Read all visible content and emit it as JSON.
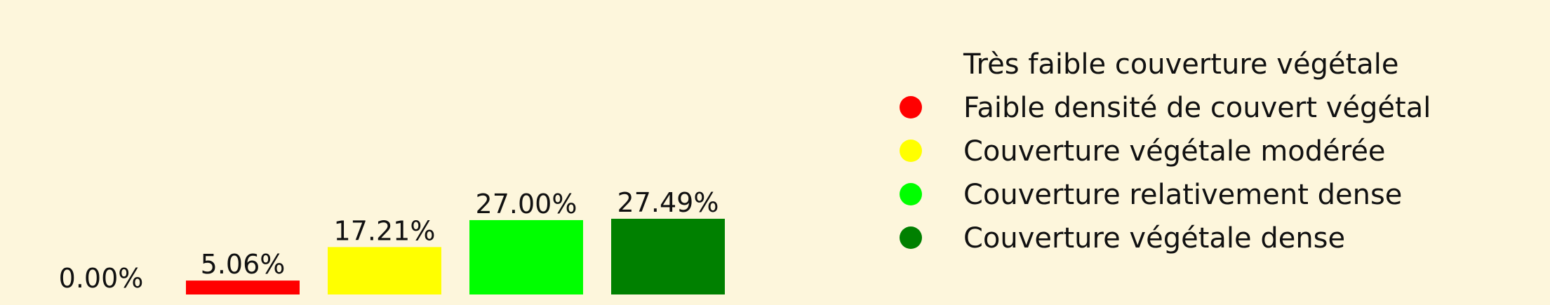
{
  "chart_data": {
    "type": "bar",
    "categories": [
      "Très faible couverture végétale",
      "Faible densité de couvert végétal",
      "Couverture végétale modérée",
      "Couverture relativement dense",
      "Couverture végétale dense"
    ],
    "values": [
      0.0,
      5.06,
      17.21,
      27.0,
      27.49
    ],
    "value_labels": [
      "0.00%",
      "5.06%",
      "17.21%",
      "27.00%",
      "27.49%"
    ],
    "colors": [
      "#fdf6dc",
      "#ff0000",
      "#ffff00",
      "#00ff00",
      "#008000"
    ],
    "title": "",
    "xlabel": "",
    "ylabel": "",
    "grid": false,
    "legend_placement": "right",
    "background": "#fdf6dc"
  }
}
